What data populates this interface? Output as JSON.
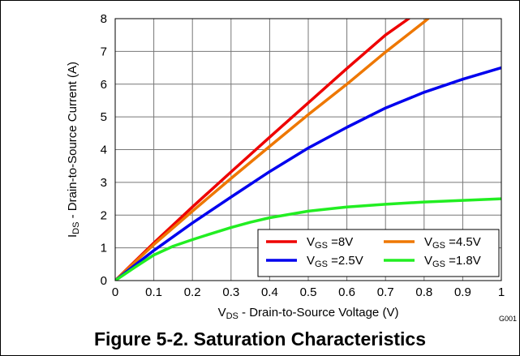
{
  "caption": "Figure 5-2. Saturation Characteristics",
  "plot_id": "G001",
  "chart_data": {
    "type": "line",
    "title": "",
    "xlabel": {
      "main": "V",
      "sub": "DS",
      "rest": " - Drain-to-Source Voltage (V)"
    },
    "ylabel": {
      "main": "I",
      "sub": "DS",
      "rest": " - Drain-to-Source Current (A)"
    },
    "xlim": [
      0,
      1
    ],
    "ylim": [
      0,
      8
    ],
    "x_ticks": [
      "0",
      "0.1",
      "0.2",
      "0.3",
      "0.4",
      "0.5",
      "0.6",
      "0.7",
      "0.8",
      "0.9",
      "1"
    ],
    "y_ticks": [
      "0",
      "1",
      "2",
      "3",
      "4",
      "5",
      "6",
      "7",
      "8"
    ],
    "grid": true,
    "legend_position": "bottom-right",
    "series": [
      {
        "name": {
          "main": "V",
          "sub": "GS",
          "rest": " =8V"
        },
        "color": "#ee0000",
        "x": [
          0,
          0.1,
          0.2,
          0.3,
          0.4,
          0.5,
          0.6,
          0.7,
          0.76
        ],
        "y": [
          0,
          1.15,
          2.25,
          3.32,
          4.38,
          5.43,
          6.48,
          7.5,
          8.0
        ]
      },
      {
        "name": {
          "main": "V",
          "sub": "GS",
          "rest": " =4.5V"
        },
        "color": "#ee7700",
        "x": [
          0,
          0.1,
          0.2,
          0.3,
          0.4,
          0.5,
          0.6,
          0.7,
          0.8,
          0.81
        ],
        "y": [
          0,
          1.1,
          2.12,
          3.12,
          4.1,
          5.07,
          6.0,
          6.98,
          7.9,
          8.0
        ]
      },
      {
        "name": {
          "main": "V",
          "sub": "GS",
          "rest": " =2.5V"
        },
        "color": "#0000ee",
        "x": [
          0,
          0.1,
          0.2,
          0.3,
          0.4,
          0.5,
          0.6,
          0.7,
          0.8,
          0.9,
          1.0
        ],
        "y": [
          0,
          0.92,
          1.76,
          2.55,
          3.33,
          4.05,
          4.68,
          5.27,
          5.75,
          6.15,
          6.5
        ]
      },
      {
        "name": {
          "main": "V",
          "sub": "GS",
          "rest": " =1.8V"
        },
        "color": "#22ee22",
        "x": [
          0,
          0.05,
          0.1,
          0.15,
          0.2,
          0.25,
          0.3,
          0.35,
          0.4,
          0.5,
          0.6,
          0.7,
          0.8,
          0.9,
          1.0
        ],
        "y": [
          0,
          0.4,
          0.78,
          1.05,
          1.25,
          1.44,
          1.62,
          1.78,
          1.92,
          2.12,
          2.25,
          2.33,
          2.4,
          2.45,
          2.5
        ]
      }
    ]
  }
}
